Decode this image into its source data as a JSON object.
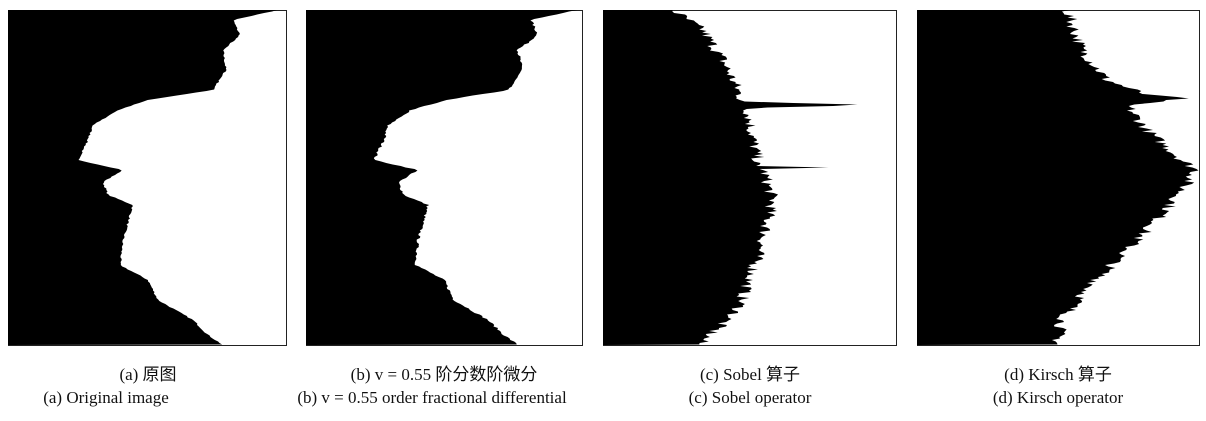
{
  "panels": [
    {
      "caption_zh": "(a) 原图",
      "caption_en": "(a) Original image"
    },
    {
      "caption_zh": "(b) v = 0.55 阶分数阶微分",
      "caption_en": "(b) v = 0.55 order fractional differential"
    },
    {
      "caption_zh": "(c) Sobel 算子",
      "caption_en": "(c) Sobel operator"
    },
    {
      "caption_zh": "(d) Kirsch 算子",
      "caption_en": "(d) Kirsch operator"
    }
  ]
}
